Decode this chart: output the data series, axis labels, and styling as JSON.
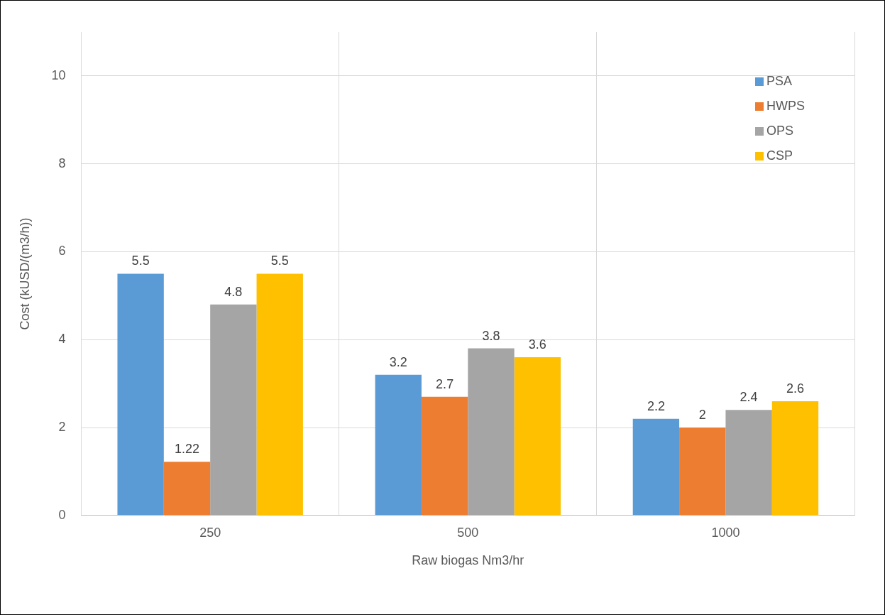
{
  "chart_data": {
    "type": "bar",
    "xlabel": "Raw biogas Nm3/hr",
    "ylabel": "Cost (kUSD/(m3/h))",
    "categories": [
      "250",
      "500",
      "1000"
    ],
    "series": [
      {
        "name": "PSA",
        "color": "#5b9bd5",
        "values": [
          5.5,
          3.2,
          2.2
        ]
      },
      {
        "name": "HWPS",
        "color": "#ed7d31",
        "values": [
          1.22,
          2.7,
          2
        ]
      },
      {
        "name": "OPS",
        "color": "#a5a5a5",
        "values": [
          4.8,
          3.8,
          2.4
        ]
      },
      {
        "name": "CSP",
        "color": "#ffc000",
        "values": [
          5.5,
          3.6,
          2.6
        ]
      }
    ],
    "ylim": [
      0,
      11
    ],
    "yticks": [
      0,
      2,
      4,
      6,
      8,
      10
    ],
    "grid": true,
    "legend": "top right",
    "data_labels": true
  }
}
